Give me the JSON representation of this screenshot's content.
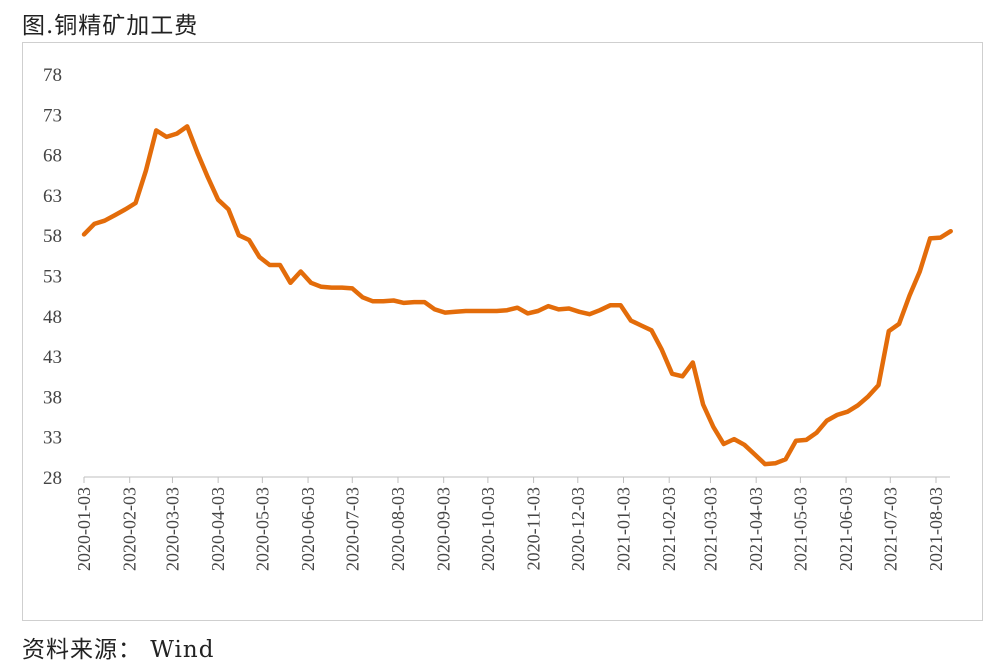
{
  "title": "图.铜精矿加工费",
  "source": "资料来源： Wind",
  "chart_data": {
    "type": "line",
    "title": "图.铜精矿加工费",
    "xlabel": "",
    "ylabel": "",
    "ylim": [
      28,
      78
    ],
    "yticks": [
      28,
      33,
      38,
      43,
      48,
      53,
      58,
      63,
      68,
      73,
      78
    ],
    "xticks": [
      "2020-01-03",
      "2020-02-03",
      "2020-03-03",
      "2020-04-03",
      "2020-05-03",
      "2020-06-03",
      "2020-07-03",
      "2020-08-03",
      "2020-09-03",
      "2020-10-03",
      "2020-11-03",
      "2020-12-03",
      "2021-01-03",
      "2021-02-03",
      "2021-03-03",
      "2021-04-03",
      "2021-05-03",
      "2021-06-03",
      "2021-07-03",
      "2021-08-03"
    ],
    "grid": false,
    "color": "#E36C0A",
    "series": [
      {
        "name": "",
        "x": [
          "2020-01-03",
          "2020-01-10",
          "2020-01-17",
          "2020-01-24",
          "2020-01-31",
          "2020-02-07",
          "2020-02-14",
          "2020-02-21",
          "2020-02-28",
          "2020-03-06",
          "2020-03-13",
          "2020-03-20",
          "2020-03-27",
          "2020-04-03",
          "2020-04-10",
          "2020-04-17",
          "2020-04-24",
          "2020-05-01",
          "2020-05-08",
          "2020-05-15",
          "2020-05-22",
          "2020-05-29",
          "2020-06-05",
          "2020-06-12",
          "2020-06-19",
          "2020-06-26",
          "2020-07-03",
          "2020-07-10",
          "2020-07-17",
          "2020-07-24",
          "2020-07-31",
          "2020-08-07",
          "2020-08-14",
          "2020-08-21",
          "2020-08-28",
          "2020-09-04",
          "2020-09-11",
          "2020-09-18",
          "2020-09-25",
          "2020-10-02",
          "2020-10-09",
          "2020-10-16",
          "2020-10-23",
          "2020-10-30",
          "2020-11-06",
          "2020-11-13",
          "2020-11-20",
          "2020-11-27",
          "2020-12-04",
          "2020-12-11",
          "2020-12-18",
          "2020-12-25",
          "2021-01-01",
          "2021-01-08",
          "2021-01-15",
          "2021-01-22",
          "2021-01-29",
          "2021-02-05",
          "2021-02-12",
          "2021-02-19",
          "2021-02-26",
          "2021-03-05",
          "2021-03-12",
          "2021-03-19",
          "2021-03-26",
          "2021-04-02",
          "2021-04-09",
          "2021-04-16",
          "2021-04-23",
          "2021-04-30",
          "2021-05-07",
          "2021-05-14",
          "2021-05-21",
          "2021-05-28",
          "2021-06-04",
          "2021-06-11",
          "2021-06-18",
          "2021-06-25",
          "2021-07-02",
          "2021-07-09",
          "2021-07-16",
          "2021-07-23",
          "2021-07-30",
          "2021-08-06",
          "2021-08-13"
        ],
        "values": [
          58.1,
          59.4,
          59.8,
          60.5,
          61.2,
          62.0,
          66.0,
          71.0,
          70.2,
          70.6,
          71.5,
          68.2,
          65.2,
          62.4,
          61.2,
          58.0,
          57.4,
          55.3,
          54.3,
          54.3,
          52.1,
          53.5,
          52.1,
          51.6,
          51.5,
          51.5,
          51.4,
          50.3,
          49.8,
          49.8,
          49.9,
          49.6,
          49.7,
          49.7,
          48.8,
          48.4,
          48.5,
          48.6,
          48.6,
          48.6,
          48.6,
          48.7,
          49.0,
          48.3,
          48.6,
          49.2,
          48.8,
          48.9,
          48.5,
          48.2,
          48.7,
          49.3,
          49.3,
          47.4,
          46.8,
          46.2,
          43.8,
          40.8,
          40.5,
          42.2,
          37.0,
          34.2,
          32.1,
          32.7,
          32.0,
          30.8,
          29.6,
          29.7,
          30.2,
          32.5,
          32.6,
          33.5,
          35.0,
          35.7,
          36.1,
          36.9,
          38.0,
          39.4,
          46.1,
          47.0,
          50.5,
          53.5,
          57.6,
          57.7,
          58.5
        ]
      }
    ]
  }
}
